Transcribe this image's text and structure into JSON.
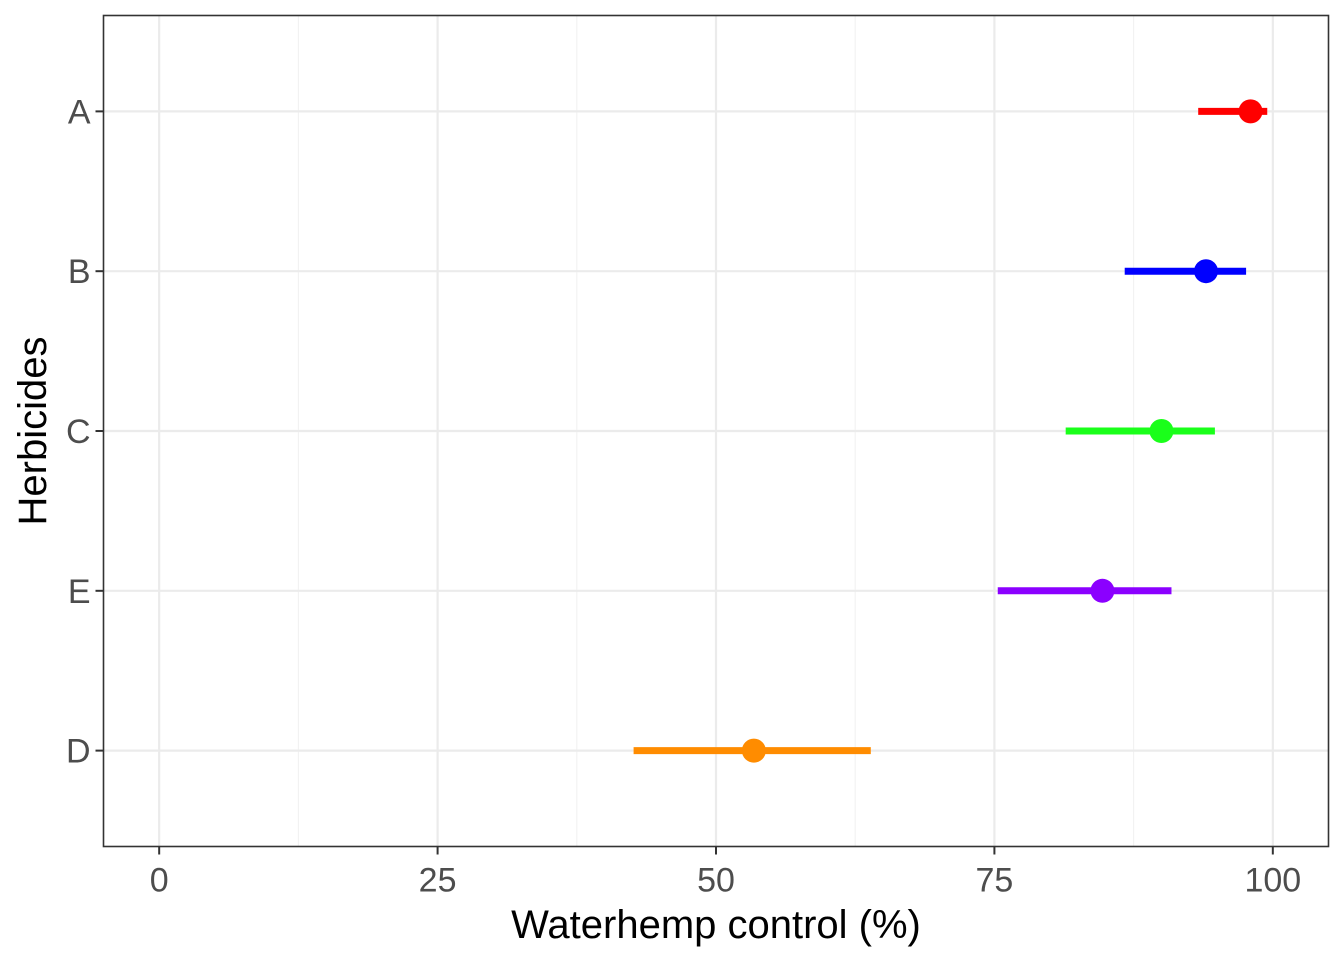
{
  "chart_data": {
    "type": "scatter",
    "subtype": "point-with-interval",
    "title": "",
    "xlabel": "Waterhemp control (%)",
    "ylabel": "Herbicides",
    "xlim": [
      -5,
      105
    ],
    "x_ticks": [
      0,
      25,
      50,
      75,
      100
    ],
    "x_tick_labels": [
      "0",
      "25",
      "50",
      "75",
      "100"
    ],
    "categories": [
      "A",
      "B",
      "C",
      "E",
      "D"
    ],
    "points": [
      {
        "category": "A",
        "estimate": 98,
        "lower": 93.3,
        "upper": 99.5,
        "color": "#ff0000"
      },
      {
        "category": "B",
        "estimate": 94,
        "lower": 86.7,
        "upper": 97.6,
        "color": "#0000ff"
      },
      {
        "category": "C",
        "estimate": 90,
        "lower": 81.4,
        "upper": 94.8,
        "color": "#1aff1a"
      },
      {
        "category": "E",
        "estimate": 84.7,
        "lower": 75.3,
        "upper": 90.9,
        "color": "#8b00ff"
      },
      {
        "category": "D",
        "estimate": 53.4,
        "lower": 42.6,
        "upper": 63.9,
        "color": "#ff8c00"
      }
    ],
    "grid": true,
    "legend": "none"
  }
}
